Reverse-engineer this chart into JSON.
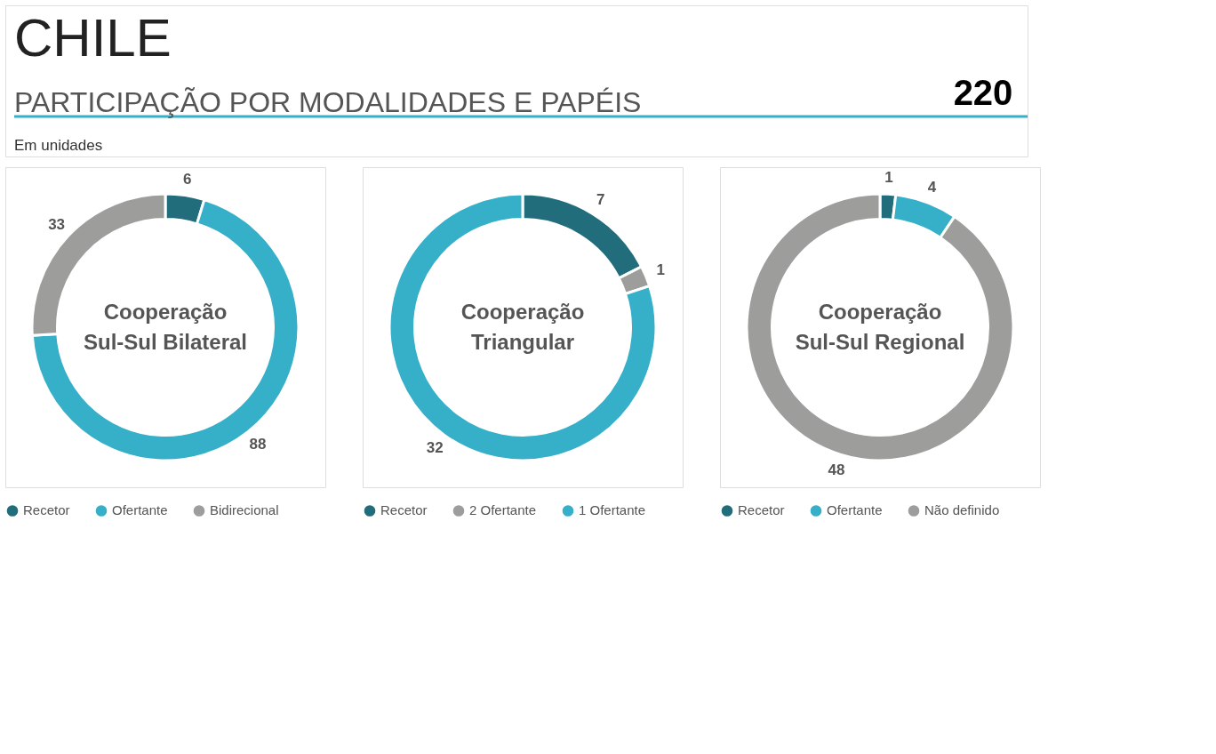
{
  "chart_data": [
    {
      "type": "donut",
      "title": "Cooperação Sul-Sul Bilateral",
      "annotations": [
        "CHILE",
        "PARTICIPAÇÃO POR MODALIDADES E PAPÉIS",
        "Em unidades",
        "220"
      ],
      "categories": [
        "Recetor",
        "Ofertante",
        "Bidirecional"
      ],
      "values": [
        6,
        88,
        33
      ],
      "colors": [
        "#216d7c",
        "#36afc9",
        "#9d9d9c"
      ],
      "data_labels": true,
      "legend": "bottom"
    },
    {
      "type": "donut",
      "title": "Cooperação Triangular",
      "categories": [
        "Recetor",
        "2 Ofertante",
        "1 Ofertante"
      ],
      "values": [
        7,
        1,
        32
      ],
      "colors": [
        "#216d7c",
        "#9d9d9c",
        "#36afc9"
      ],
      "data_labels": true,
      "legend": "bottom"
    },
    {
      "type": "donut",
      "title": "Cooperação Sul-Sul Regional",
      "categories": [
        "Recetor",
        "Ofertante",
        "Não definido"
      ],
      "values": [
        1,
        4,
        48
      ],
      "colors": [
        "#216d7c",
        "#36afc9",
        "#9d9d9c"
      ],
      "data_labels": true,
      "legend": "bottom"
    }
  ]
}
